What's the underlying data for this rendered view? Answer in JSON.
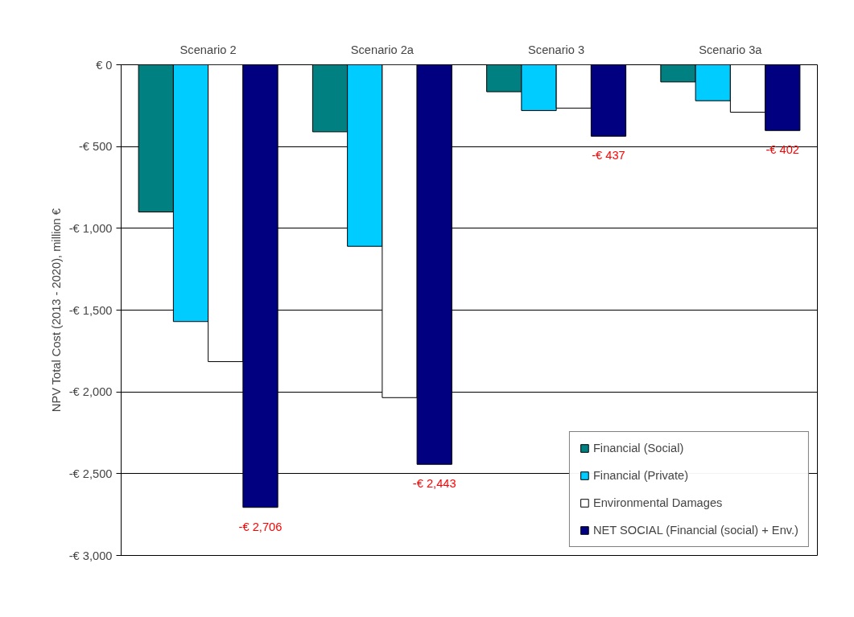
{
  "chart_data": {
    "type": "bar",
    "ylabel": "NPV Total Cost (2013 - 2020), million €",
    "categories": [
      "Scenario 2",
      "Scenario 2a",
      "Scenario 3",
      "Scenario 3a"
    ],
    "series": [
      {
        "name": "Financial (Social)",
        "color": "#008080",
        "values": [
          -900,
          -410,
          -165,
          -105
        ]
      },
      {
        "name": "Financial (Private)",
        "color": "#00ccff",
        "values": [
          -1570,
          -1110,
          -280,
          -220
        ]
      },
      {
        "name": "Environmental Damages",
        "color": "#ffffff",
        "values": [
          -1815,
          -2035,
          -265,
          -290
        ]
      },
      {
        "name": "NET SOCIAL (Financial (social) + Env.)",
        "color": "#000080",
        "values": [
          -2706,
          -2443,
          -437,
          -402
        ],
        "value_labels": [
          "-€ 2,706",
          "-€ 2,443",
          "-€ 437",
          "-€ 402"
        ]
      }
    ],
    "ylim": [
      -3000,
      0
    ],
    "yticks": [
      {
        "value": -3000,
        "label": "-€ 3,000"
      },
      {
        "value": -2500,
        "label": "-€ 2,500"
      },
      {
        "value": -2000,
        "label": "-€ 2,000"
      },
      {
        "value": -1500,
        "label": "-€ 1,500"
      },
      {
        "value": -1000,
        "label": "-€ 1,000"
      },
      {
        "value": -500,
        "label": "-€ 500"
      },
      {
        "value": 0,
        "label": "€ 0"
      }
    ],
    "grid": "y",
    "legend": "bottom right"
  }
}
